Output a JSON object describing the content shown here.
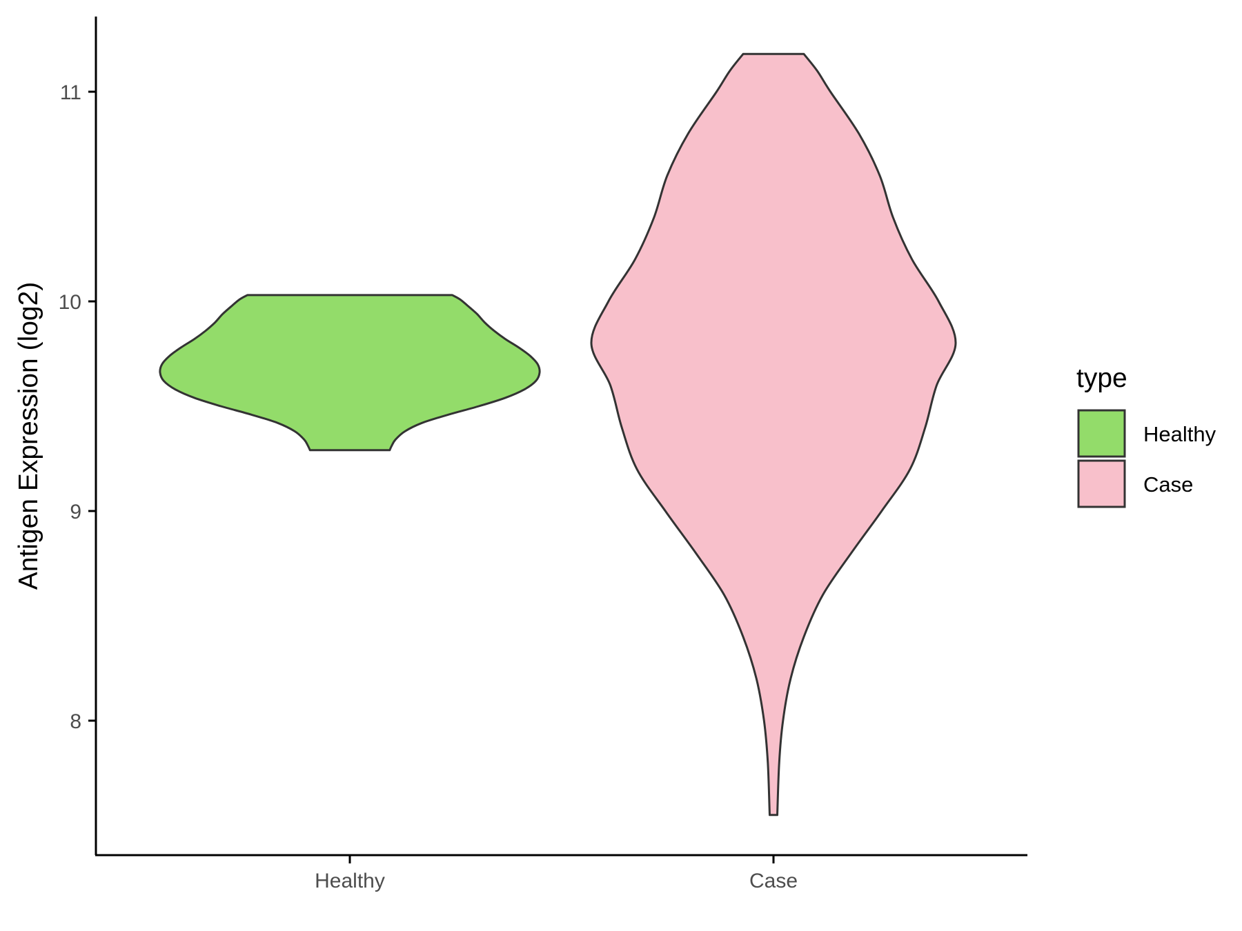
{
  "chart_data": {
    "type": "violin",
    "ylabel": "Antigen Expression (log2)",
    "xlabel": "",
    "ylim": [
      7.35,
      11.35
    ],
    "yticks": [
      8,
      9,
      10,
      11
    ],
    "categories": [
      "Healthy",
      "Case"
    ],
    "grid": false,
    "legend": {
      "title": "type",
      "position": "right",
      "entries": [
        {
          "label": "Healthy",
          "color": "#93DC6A"
        },
        {
          "label": "Case",
          "color": "#F8C0CB"
        }
      ]
    },
    "series": [
      {
        "name": "Healthy",
        "color": "#93DC6A",
        "min": 9.29,
        "max": 10.03,
        "profile": [
          [
            9.29,
            0.21
          ],
          [
            9.31,
            0.22
          ],
          [
            9.34,
            0.24
          ],
          [
            9.38,
            0.29
          ],
          [
            9.42,
            0.38
          ],
          [
            9.46,
            0.52
          ],
          [
            9.5,
            0.68
          ],
          [
            9.54,
            0.82
          ],
          [
            9.58,
            0.92
          ],
          [
            9.62,
            0.98
          ],
          [
            9.66,
            1.0
          ],
          [
            9.7,
            0.99
          ],
          [
            9.74,
            0.95
          ],
          [
            9.78,
            0.89
          ],
          [
            9.82,
            0.82
          ],
          [
            9.86,
            0.76
          ],
          [
            9.9,
            0.71
          ],
          [
            9.94,
            0.67
          ],
          [
            9.98,
            0.62
          ],
          [
            10.01,
            0.58
          ],
          [
            10.03,
            0.54
          ]
        ]
      },
      {
        "name": "Case",
        "color": "#F8C0CB",
        "min": 7.55,
        "max": 11.18,
        "profile": [
          [
            7.55,
            0.02
          ],
          [
            7.8,
            0.03
          ],
          [
            8.0,
            0.05
          ],
          [
            8.2,
            0.09
          ],
          [
            8.4,
            0.16
          ],
          [
            8.6,
            0.26
          ],
          [
            8.8,
            0.41
          ],
          [
            9.0,
            0.57
          ],
          [
            9.2,
            0.72
          ],
          [
            9.4,
            0.8
          ],
          [
            9.6,
            0.86
          ],
          [
            9.8,
            0.96
          ],
          [
            10.0,
            0.87
          ],
          [
            10.2,
            0.73
          ],
          [
            10.4,
            0.63
          ],
          [
            10.6,
            0.56
          ],
          [
            10.8,
            0.45
          ],
          [
            11.0,
            0.3
          ],
          [
            11.1,
            0.23
          ],
          [
            11.18,
            0.16
          ]
        ]
      }
    ]
  }
}
